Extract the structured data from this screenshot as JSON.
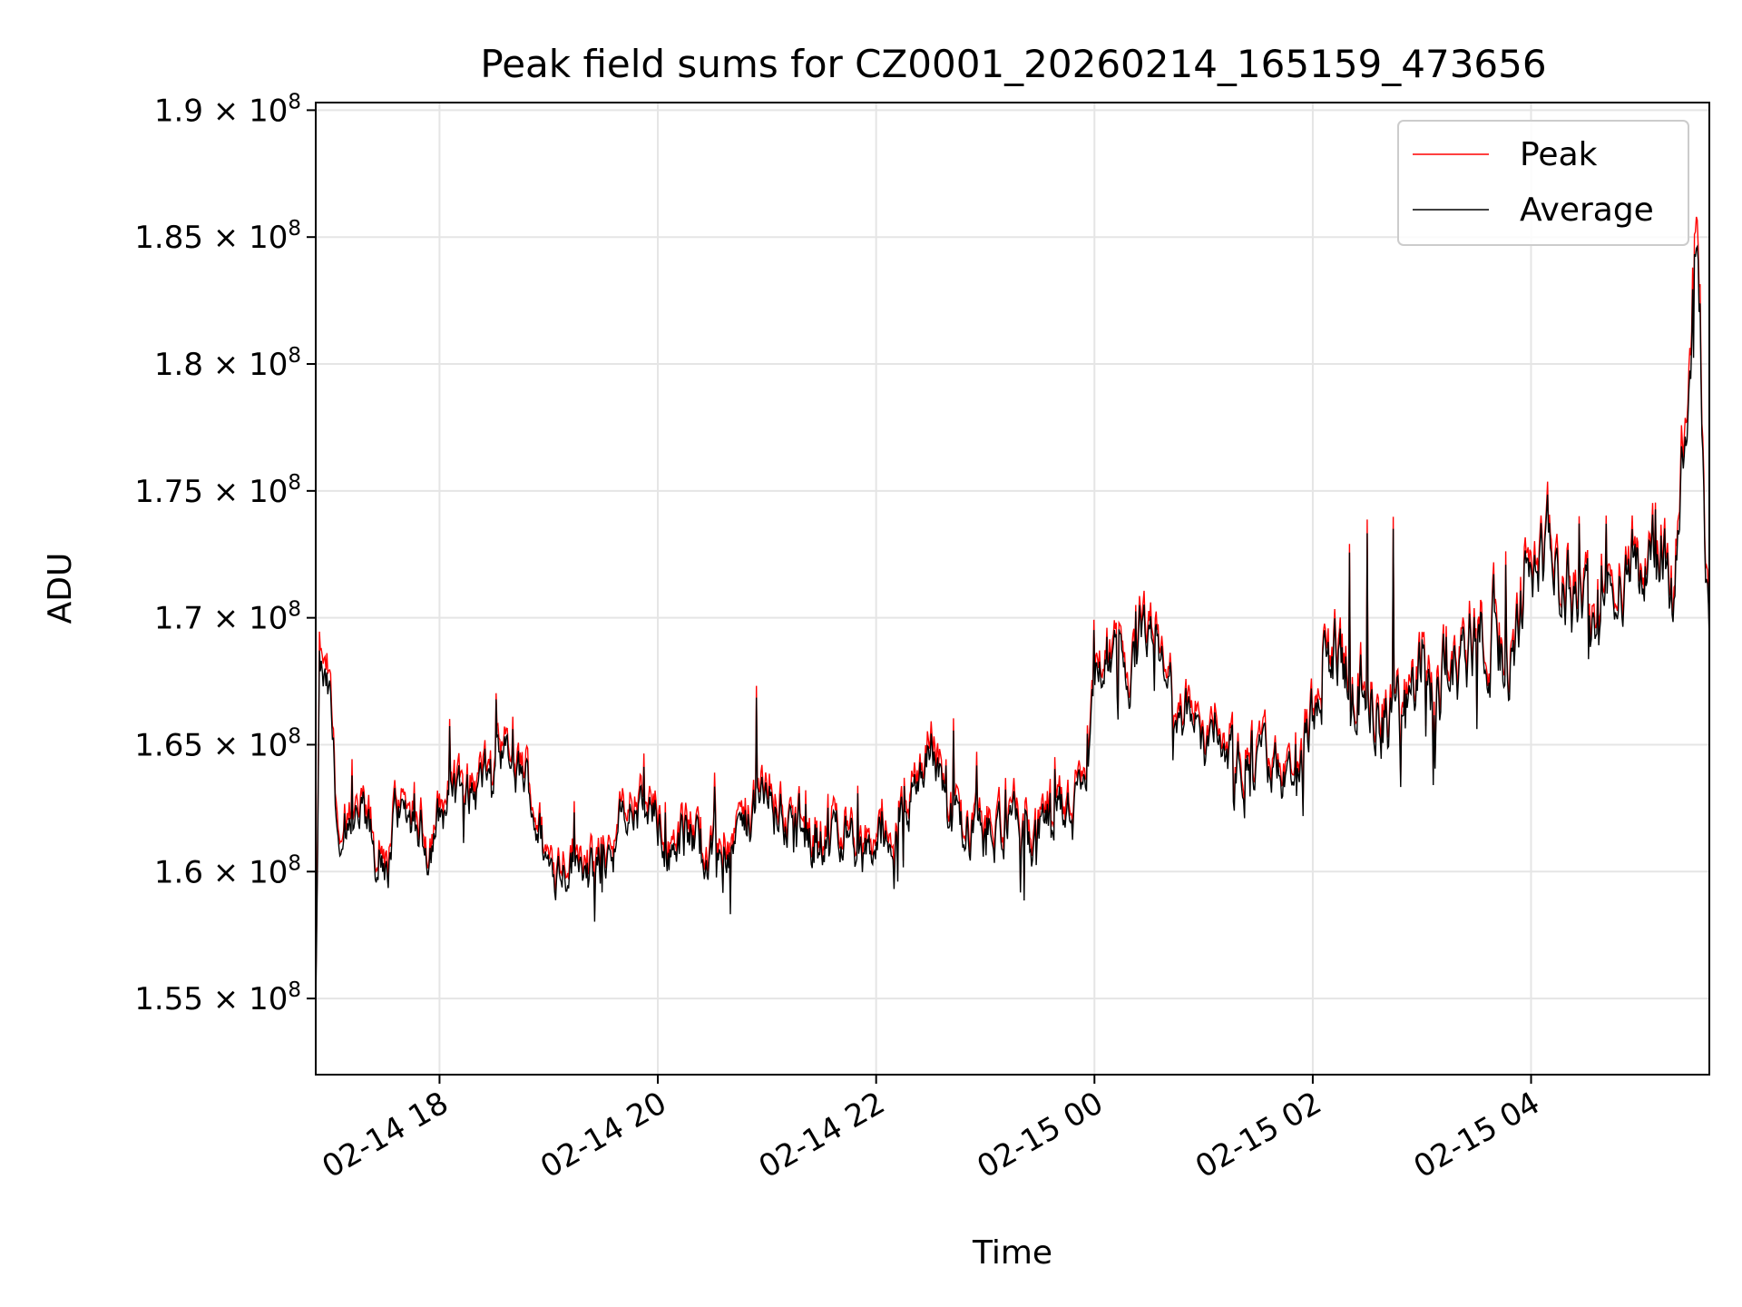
{
  "chart_data": {
    "type": "line",
    "title": "Peak field sums for CZ0001_20260214_165159_473656",
    "xlabel": "Time",
    "ylabel": "ADU",
    "x_start": "02-14 16:52",
    "x_end": "02-15 05:38",
    "xlim_hours": [
      16.866,
      29.633
    ],
    "ylim": [
      152000000,
      190300000
    ],
    "y_ticks": [
      {
        "value": 155000000,
        "mantissa": "1.55"
      },
      {
        "value": 160000000,
        "mantissa": "1.6"
      },
      {
        "value": 165000000,
        "mantissa": "1.65"
      },
      {
        "value": 170000000,
        "mantissa": "1.7"
      },
      {
        "value": 175000000,
        "mantissa": "1.75"
      },
      {
        "value": 180000000,
        "mantissa": "1.8"
      },
      {
        "value": 185000000,
        "mantissa": "1.85"
      },
      {
        "value": 190000000,
        "mantissa": "1.9"
      }
    ],
    "y_tick_multiplier": "× 10",
    "y_tick_exponent": "8",
    "x_ticks": [
      {
        "hour": 18,
        "label": "02-14 18"
      },
      {
        "hour": 20,
        "label": "02-14 20"
      },
      {
        "hour": 22,
        "label": "02-14 22"
      },
      {
        "hour": 24,
        "label": "02-15 00"
      },
      {
        "hour": 26,
        "label": "02-15 02"
      },
      {
        "hour": 28,
        "label": "02-15 04"
      }
    ],
    "grid": true,
    "legend_position": "top-right",
    "series_anchor_points": {
      "hours": [
        16.87,
        16.9,
        17.0,
        17.1,
        17.2,
        17.3,
        17.5,
        17.6,
        17.8,
        17.9,
        18.0,
        18.2,
        18.3,
        18.6,
        18.8,
        19.0,
        19.2,
        19.4,
        19.6,
        19.7,
        19.9,
        20.1,
        20.3,
        20.5,
        20.8,
        21.0,
        21.2,
        21.4,
        21.7,
        21.9,
        22.1,
        22.3,
        22.4,
        22.5,
        22.6,
        22.7,
        22.8,
        22.9,
        23.0,
        23.2,
        23.4,
        23.6,
        23.7,
        23.8,
        23.9,
        24.0,
        24.2,
        24.3,
        24.5,
        24.7,
        25.0,
        25.3,
        25.6,
        25.8,
        26.0,
        26.1,
        26.2,
        26.4,
        26.6,
        26.8,
        27.0,
        27.2,
        27.4,
        27.6,
        27.8,
        28.0,
        28.2,
        28.4,
        28.6,
        28.8,
        29.0,
        29.2,
        29.3,
        29.4,
        29.45,
        29.5,
        29.55,
        29.6,
        29.633
      ],
      "peak": [
        155000000,
        168500000,
        167000000,
        160000000,
        162000000,
        162500000,
        159500000,
        163000000,
        162000000,
        161500000,
        162500000,
        164000000,
        163500000,
        164500000,
        164000000,
        160500000,
        161000000,
        160000000,
        161500000,
        162500000,
        163000000,
        161500000,
        162000000,
        161000000,
        162000000,
        163500000,
        162500000,
        161500000,
        162500000,
        161000000,
        162000000,
        163000000,
        164500000,
        165500000,
        164000000,
        162500000,
        161500000,
        162000000,
        161500000,
        162500000,
        161000000,
        162500000,
        163000000,
        163500000,
        163000000,
        168000000,
        169000000,
        168000000,
        169500000,
        167500000,
        165500000,
        165000000,
        164500000,
        164000000,
        165000000,
        168500000,
        169000000,
        167500000,
        166500000,
        166000000,
        167500000,
        168000000,
        169000000,
        170500000,
        168500000,
        172500000,
        172500000,
        171000000,
        170500000,
        172500000,
        172000000,
        173500000,
        171000000,
        177500000,
        179000000,
        185000000,
        181000000,
        172000000,
        168000000
      ],
      "average": [
        154500000,
        167800000,
        166400000,
        159500000,
        161500000,
        162100000,
        159100000,
        162600000,
        161600000,
        161100000,
        162100000,
        163600000,
        163100000,
        164100000,
        163600000,
        160100000,
        160600000,
        159600000,
        161100000,
        162100000,
        162600000,
        161100000,
        161600000,
        160600000,
        161600000,
        163100000,
        162100000,
        161100000,
        162100000,
        160600000,
        161600000,
        162600000,
        164100000,
        165000000,
        163600000,
        162100000,
        161100000,
        161600000,
        161100000,
        162100000,
        160600000,
        162100000,
        162600000,
        163100000,
        162600000,
        167600000,
        168600000,
        167600000,
        169100000,
        167100000,
        165100000,
        164600000,
        164100000,
        163600000,
        164600000,
        168100000,
        168600000,
        167100000,
        166100000,
        165600000,
        167100000,
        167600000,
        168600000,
        170100000,
        168100000,
        172100000,
        172100000,
        170600000,
        170100000,
        172100000,
        171600000,
        173100000,
        170600000,
        176800000,
        178200000,
        184000000,
        180300000,
        171500000,
        167600000
      ]
    },
    "series": [
      {
        "name": "Peak",
        "color": "#ff0000"
      },
      {
        "name": "Average",
        "color": "#000000"
      }
    ]
  }
}
